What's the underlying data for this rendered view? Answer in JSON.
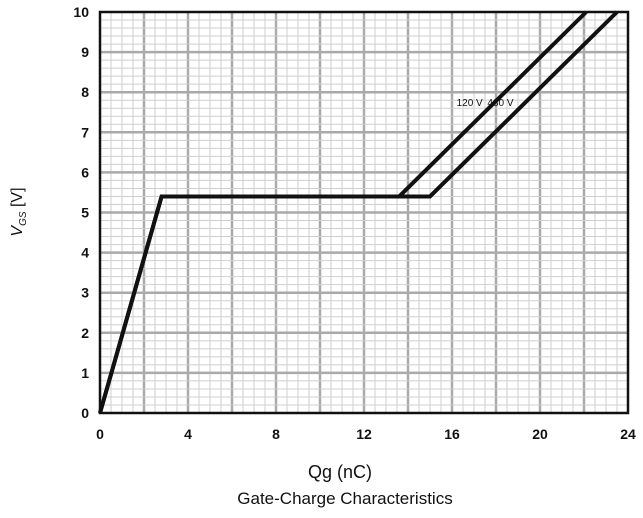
{
  "chart_data": {
    "type": "line",
    "title": "Gate-Charge Characteristics",
    "xlabel": "Qg (nC)",
    "ylabel": {
      "main": "V",
      "sub": "GS",
      "unit": " [V]"
    },
    "xlim": [
      0,
      24
    ],
    "ylim": [
      0,
      10
    ],
    "x_ticks": [
      0,
      4,
      8,
      12,
      16,
      20,
      24
    ],
    "y_ticks": [
      0,
      1,
      2,
      3,
      4,
      5,
      6,
      7,
      8,
      9,
      10
    ],
    "grid": true,
    "series": [
      {
        "name": "120 V",
        "x": [
          0,
          2.8,
          13.6,
          22.1
        ],
        "y": [
          0,
          5.4,
          5.4,
          10
        ]
      },
      {
        "name": "480 V",
        "x": [
          0,
          2.8,
          15.0,
          23.5
        ],
        "y": [
          0,
          5.4,
          5.4,
          10
        ]
      }
    ]
  }
}
